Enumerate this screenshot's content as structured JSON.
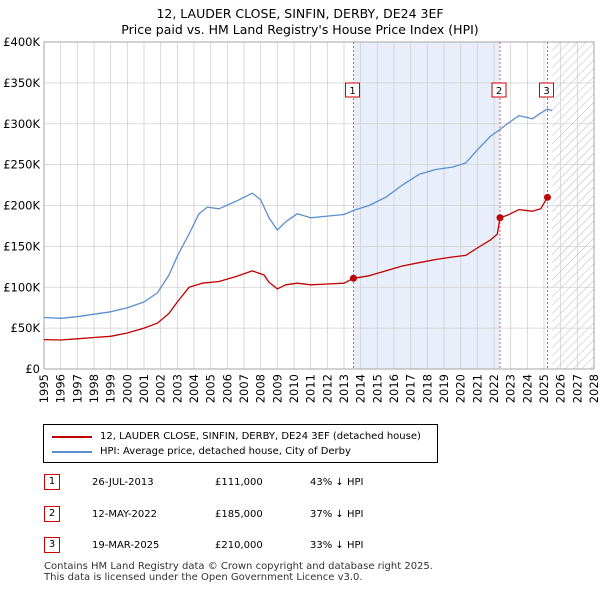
{
  "title": {
    "line1": "12, LAUDER CLOSE, SINFIN, DERBY, DE24 3EF",
    "line2": "Price paid vs. HM Land Registry's House Price Index (HPI)"
  },
  "colors": {
    "property": "#c00000",
    "hpi": "#5b8fd1",
    "shade": "#e8eefa",
    "grid": "#d0d0d0",
    "marker_line": "#e06060"
  },
  "chart_data": {
    "type": "line",
    "title": "Price paid vs. HM Land Registry's House Price Index (HPI)",
    "xlabel": "",
    "ylabel": "",
    "xlim": [
      1995,
      2028
    ],
    "ylim": [
      0,
      400000
    ],
    "x_ticks": [
      1995,
      1996,
      1997,
      1998,
      1999,
      2000,
      2001,
      2002,
      2003,
      2004,
      2005,
      2006,
      2007,
      2008,
      2009,
      2010,
      2011,
      2012,
      2013,
      2014,
      2015,
      2016,
      2017,
      2018,
      2019,
      2020,
      2021,
      2022,
      2023,
      2024,
      2025,
      2026,
      2027,
      2028
    ],
    "y_ticks": [
      {
        "value": 0,
        "label": "£0"
      },
      {
        "value": 50000,
        "label": "£50K"
      },
      {
        "value": 100000,
        "label": "£100K"
      },
      {
        "value": 150000,
        "label": "£150K"
      },
      {
        "value": 200000,
        "label": "£200K"
      },
      {
        "value": 250000,
        "label": "£250K"
      },
      {
        "value": 300000,
        "label": "£300K"
      },
      {
        "value": 350000,
        "label": "£350K"
      },
      {
        "value": 400000,
        "label": "£400K"
      }
    ],
    "shaded_region": [
      2013.57,
      2022.36
    ],
    "hatched_region_from": 2025.5,
    "series": [
      {
        "name": "12, LAUDER CLOSE, SINFIN, DERBY, DE24 3EF (detached house)",
        "color": "#c00000",
        "points": [
          [
            1995,
            36000
          ],
          [
            1996,
            35500
          ],
          [
            1997,
            37000
          ],
          [
            1998,
            38500
          ],
          [
            1999,
            40000
          ],
          [
            2000,
            44000
          ],
          [
            2001,
            50000
          ],
          [
            2001.8,
            56000
          ],
          [
            2002.5,
            68000
          ],
          [
            2003,
            82000
          ],
          [
            2003.7,
            100000
          ],
          [
            2004.5,
            105000
          ],
          [
            2005.5,
            107000
          ],
          [
            2006.5,
            113000
          ],
          [
            2007.5,
            120000
          ],
          [
            2008.2,
            115000
          ],
          [
            2008.5,
            106000
          ],
          [
            2009,
            98000
          ],
          [
            2009.5,
            103000
          ],
          [
            2010.2,
            105000
          ],
          [
            2011,
            103000
          ],
          [
            2012,
            104000
          ],
          [
            2013,
            105000
          ],
          [
            2013.57,
            111000
          ],
          [
            2014.5,
            114000
          ],
          [
            2015.5,
            120000
          ],
          [
            2016.5,
            126000
          ],
          [
            2017.5,
            130000
          ],
          [
            2018.5,
            134000
          ],
          [
            2019.5,
            137000
          ],
          [
            2020.3,
            139000
          ],
          [
            2021,
            148000
          ],
          [
            2021.8,
            158000
          ],
          [
            2022.2,
            165000
          ],
          [
            2022.36,
            185000
          ],
          [
            2022.8,
            188000
          ],
          [
            2023.5,
            195000
          ],
          [
            2024.3,
            193000
          ],
          [
            2024.8,
            196000
          ],
          [
            2025.21,
            210000
          ]
        ]
      },
      {
        "name": "HPI: Average price, detached house, City of Derby",
        "color": "#5b8fd1",
        "points": [
          [
            1995,
            63000
          ],
          [
            1996,
            62000
          ],
          [
            1997,
            64000
          ],
          [
            1998,
            67000
          ],
          [
            1999,
            70000
          ],
          [
            2000,
            75000
          ],
          [
            2001,
            82000
          ],
          [
            2001.8,
            93000
          ],
          [
            2002.5,
            115000
          ],
          [
            2003,
            138000
          ],
          [
            2003.7,
            165000
          ],
          [
            2004.3,
            190000
          ],
          [
            2004.8,
            198000
          ],
          [
            2005.5,
            196000
          ],
          [
            2006.5,
            205000
          ],
          [
            2007.5,
            215000
          ],
          [
            2008,
            207000
          ],
          [
            2008.5,
            185000
          ],
          [
            2009,
            170000
          ],
          [
            2009.5,
            180000
          ],
          [
            2010.2,
            190000
          ],
          [
            2011,
            185000
          ],
          [
            2012,
            187000
          ],
          [
            2013,
            189000
          ],
          [
            2013.57,
            194000
          ],
          [
            2014.5,
            200000
          ],
          [
            2015.5,
            210000
          ],
          [
            2016.5,
            225000
          ],
          [
            2017.5,
            238000
          ],
          [
            2018.5,
            244000
          ],
          [
            2019.5,
            247000
          ],
          [
            2020.3,
            252000
          ],
          [
            2021,
            268000
          ],
          [
            2021.8,
            285000
          ],
          [
            2022.36,
            293000
          ],
          [
            2022.8,
            300000
          ],
          [
            2023.5,
            310000
          ],
          [
            2024.3,
            306000
          ],
          [
            2024.8,
            313000
          ],
          [
            2025.21,
            318000
          ],
          [
            2025.5,
            316000
          ]
        ]
      }
    ],
    "sales": [
      {
        "label": "1",
        "x": 2013.57,
        "value": 111000
      },
      {
        "label": "2",
        "x": 2022.36,
        "value": 185000
      },
      {
        "label": "3",
        "x": 2025.21,
        "value": 210000
      }
    ]
  },
  "legend": {
    "property_label": "12, LAUDER CLOSE, SINFIN, DERBY, DE24 3EF (detached house)",
    "hpi_label": "HPI: Average price, detached house, City of Derby"
  },
  "sales_table": [
    {
      "num": "1",
      "date": "26-JUL-2013",
      "price": "£111,000",
      "hpi": "43% ↓ HPI"
    },
    {
      "num": "2",
      "date": "12-MAY-2022",
      "price": "£185,000",
      "hpi": "37% ↓ HPI"
    },
    {
      "num": "3",
      "date": "19-MAR-2025",
      "price": "£210,000",
      "hpi": "33% ↓ HPI"
    }
  ],
  "footer": {
    "line1": "Contains HM Land Registry data © Crown copyright and database right 2025.",
    "line2": "This data is licensed under the Open Government Licence v3.0."
  }
}
